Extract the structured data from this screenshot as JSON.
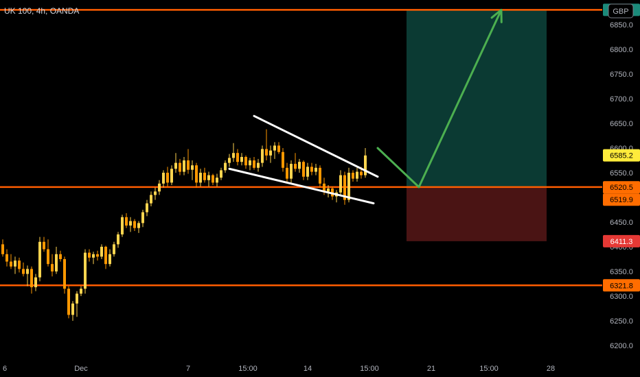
{
  "header": {
    "title": "UK 100, 4h, OANDA",
    "currency": "GBP"
  },
  "colors": {
    "background": "#000000",
    "candle_up": "#ffd54f",
    "candle_down": "#ff9800",
    "level_line": "#ff5d00",
    "target_zone": "#0b3a33",
    "stop_zone": "#4a1414",
    "arrow": "#4caf50",
    "trendline": "#ffffff",
    "price_tag_yellow": "#ffeb3b",
    "price_tag_orange": "#ff6d00",
    "price_tag_green": "#1b8a7a",
    "price_tag_red": "#e53935"
  },
  "chart_data": {
    "type": "candlestick",
    "symbol": "UK 100",
    "timeframe": "4h",
    "source": "OANDA",
    "ylim": [
      6175,
      6900
    ],
    "xlim": [
      0,
      120
    ],
    "y_ticks": [
      6200,
      6250,
      6300,
      6350,
      6400,
      6450,
      6500,
      6550,
      6600,
      6650,
      6700,
      6750,
      6800,
      6850
    ],
    "y_tick_labels": [
      "6200.0",
      "6250.0",
      "6300.0",
      "6350.0",
      "6400.0",
      "6450.0",
      "6500.0",
      "6550.0",
      "6600.0",
      "6650.0",
      "6700.0",
      "6750.0",
      "6800.0",
      "6850.0"
    ],
    "x_ticks": [
      {
        "x": 0,
        "label": "6"
      },
      {
        "x": 19,
        "label": "Dec"
      },
      {
        "x": 45,
        "label": "7"
      },
      {
        "x": 59.5,
        "label": "15:00"
      },
      {
        "x": 74,
        "label": "14"
      },
      {
        "x": 89,
        "label": "15:00"
      },
      {
        "x": 104,
        "label": "21"
      },
      {
        "x": 118,
        "label": "15:00"
      },
      {
        "x": 133,
        "label": "28"
      }
    ],
    "horizontal_levels": [
      6880.0,
      6521.0,
      6321.8
    ],
    "price_tags": [
      {
        "value": 6880.0,
        "label": "6880.0",
        "color": "green"
      },
      {
        "value": 6585.2,
        "label": "6585.2",
        "color": "yellow"
      },
      {
        "value": 6520.5,
        "label": "6520.5",
        "color": "orange"
      },
      {
        "value": 6519.9,
        "label": "6519.9",
        "color": "orange"
      },
      {
        "value": 6411.3,
        "label": "6411.3",
        "color": "red"
      },
      {
        "value": 6321.8,
        "label": "6321.8",
        "color": "orange"
      }
    ],
    "target_zone": {
      "x_start": 98,
      "x_end": 132,
      "y_low": 6521,
      "y_high": 6880
    },
    "stop_zone": {
      "x_start": 98,
      "x_end": 132,
      "y_low": 6411.3,
      "y_high": 6521
    },
    "trendlines": [
      {
        "x1": 61,
        "y1": 6665,
        "x2": 91,
        "y2": 6542
      },
      {
        "x1": 55,
        "y1": 6558,
        "x2": 90,
        "y2": 6488
      }
    ],
    "arrow_path": [
      [
        91,
        6600
      ],
      [
        101,
        6521
      ],
      [
        121,
        6880
      ]
    ],
    "candles": [
      {
        "o": 6405,
        "h": 6415,
        "l": 6380,
        "c": 6385
      },
      {
        "o": 6385,
        "h": 6395,
        "l": 6360,
        "c": 6370
      },
      {
        "o": 6370,
        "h": 6385,
        "l": 6355,
        "c": 6360
      },
      {
        "o": 6360,
        "h": 6380,
        "l": 6345,
        "c": 6372
      },
      {
        "o": 6372,
        "h": 6378,
        "l": 6348,
        "c": 6355
      },
      {
        "o": 6355,
        "h": 6368,
        "l": 6340,
        "c": 6345
      },
      {
        "o": 6345,
        "h": 6362,
        "l": 6320,
        "c": 6355
      },
      {
        "o": 6355,
        "h": 6360,
        "l": 6305,
        "c": 6318
      },
      {
        "o": 6318,
        "h": 6345,
        "l": 6310,
        "c": 6338
      },
      {
        "o": 6338,
        "h": 6420,
        "l": 6330,
        "c": 6410
      },
      {
        "o": 6410,
        "h": 6420,
        "l": 6390,
        "c": 6395
      },
      {
        "o": 6395,
        "h": 6415,
        "l": 6360,
        "c": 6365
      },
      {
        "o": 6365,
        "h": 6385,
        "l": 6340,
        "c": 6350
      },
      {
        "o": 6350,
        "h": 6400,
        "l": 6345,
        "c": 6385
      },
      {
        "o": 6385,
        "h": 6392,
        "l": 6370,
        "c": 6375
      },
      {
        "o": 6375,
        "h": 6380,
        "l": 6305,
        "c": 6315
      },
      {
        "o": 6315,
        "h": 6320,
        "l": 6255,
        "c": 6262
      },
      {
        "o": 6262,
        "h": 6290,
        "l": 6250,
        "c": 6285
      },
      {
        "o": 6285,
        "h": 6310,
        "l": 6258,
        "c": 6305
      },
      {
        "o": 6305,
        "h": 6320,
        "l": 6300,
        "c": 6315
      },
      {
        "o": 6315,
        "h": 6395,
        "l": 6305,
        "c": 6388
      },
      {
        "o": 6388,
        "h": 6395,
        "l": 6370,
        "c": 6378
      },
      {
        "o": 6378,
        "h": 6390,
        "l": 6365,
        "c": 6385
      },
      {
        "o": 6385,
        "h": 6392,
        "l": 6372,
        "c": 6380
      },
      {
        "o": 6380,
        "h": 6405,
        "l": 6375,
        "c": 6400
      },
      {
        "o": 6400,
        "h": 6402,
        "l": 6355,
        "c": 6365
      },
      {
        "o": 6365,
        "h": 6395,
        "l": 6360,
        "c": 6385
      },
      {
        "o": 6385,
        "h": 6410,
        "l": 6380,
        "c": 6405
      },
      {
        "o": 6405,
        "h": 6430,
        "l": 6398,
        "c": 6425
      },
      {
        "o": 6425,
        "h": 6465,
        "l": 6420,
        "c": 6460
      },
      {
        "o": 6460,
        "h": 6468,
        "l": 6438,
        "c": 6443
      },
      {
        "o": 6443,
        "h": 6460,
        "l": 6430,
        "c": 6452
      },
      {
        "o": 6452,
        "h": 6456,
        "l": 6432,
        "c": 6438
      },
      {
        "o": 6438,
        "h": 6452,
        "l": 6428,
        "c": 6448
      },
      {
        "o": 6448,
        "h": 6475,
        "l": 6440,
        "c": 6470
      },
      {
        "o": 6470,
        "h": 6495,
        "l": 6462,
        "c": 6488
      },
      {
        "o": 6488,
        "h": 6512,
        "l": 6482,
        "c": 6505
      },
      {
        "o": 6505,
        "h": 6520,
        "l": 6495,
        "c": 6512
      },
      {
        "o": 6512,
        "h": 6535,
        "l": 6505,
        "c": 6528
      },
      {
        "o": 6528,
        "h": 6555,
        "l": 6520,
        "c": 6550
      },
      {
        "o": 6550,
        "h": 6562,
        "l": 6522,
        "c": 6530
      },
      {
        "o": 6530,
        "h": 6565,
        "l": 6525,
        "c": 6558
      },
      {
        "o": 6558,
        "h": 6590,
        "l": 6550,
        "c": 6570
      },
      {
        "o": 6570,
        "h": 6578,
        "l": 6545,
        "c": 6552
      },
      {
        "o": 6552,
        "h": 6582,
        "l": 6545,
        "c": 6575
      },
      {
        "o": 6575,
        "h": 6598,
        "l": 6548,
        "c": 6556
      },
      {
        "o": 6556,
        "h": 6575,
        "l": 6535,
        "c": 6565
      },
      {
        "o": 6565,
        "h": 6570,
        "l": 6520,
        "c": 6530
      },
      {
        "o": 6530,
        "h": 6558,
        "l": 6522,
        "c": 6550
      },
      {
        "o": 6550,
        "h": 6560,
        "l": 6530,
        "c": 6535
      },
      {
        "o": 6535,
        "h": 6552,
        "l": 6522,
        "c": 6545
      },
      {
        "o": 6545,
        "h": 6548,
        "l": 6525,
        "c": 6530
      },
      {
        "o": 6530,
        "h": 6548,
        "l": 6522,
        "c": 6540
      },
      {
        "o": 6540,
        "h": 6560,
        "l": 6535,
        "c": 6555
      },
      {
        "o": 6555,
        "h": 6575,
        "l": 6550,
        "c": 6570
      },
      {
        "o": 6570,
        "h": 6588,
        "l": 6562,
        "c": 6580
      },
      {
        "o": 6580,
        "h": 6610,
        "l": 6572,
        "c": 6590
      },
      {
        "o": 6590,
        "h": 6598,
        "l": 6565,
        "c": 6572
      },
      {
        "o": 6572,
        "h": 6590,
        "l": 6565,
        "c": 6582
      },
      {
        "o": 6582,
        "h": 6585,
        "l": 6558,
        "c": 6565
      },
      {
        "o": 6565,
        "h": 6580,
        "l": 6555,
        "c": 6575
      },
      {
        "o": 6575,
        "h": 6582,
        "l": 6556,
        "c": 6560
      },
      {
        "o": 6560,
        "h": 6578,
        "l": 6552,
        "c": 6570
      },
      {
        "o": 6570,
        "h": 6605,
        "l": 6562,
        "c": 6598
      },
      {
        "o": 6598,
        "h": 6638,
        "l": 6575,
        "c": 6585
      },
      {
        "o": 6585,
        "h": 6605,
        "l": 6570,
        "c": 6595
      },
      {
        "o": 6595,
        "h": 6612,
        "l": 6578,
        "c": 6605
      },
      {
        "o": 6605,
        "h": 6612,
        "l": 6588,
        "c": 6592
      },
      {
        "o": 6592,
        "h": 6600,
        "l": 6552,
        "c": 6560
      },
      {
        "o": 6560,
        "h": 6570,
        "l": 6530,
        "c": 6538
      },
      {
        "o": 6538,
        "h": 6575,
        "l": 6530,
        "c": 6568
      },
      {
        "o": 6568,
        "h": 6590,
        "l": 6552,
        "c": 6558
      },
      {
        "o": 6558,
        "h": 6578,
        "l": 6550,
        "c": 6572
      },
      {
        "o": 6572,
        "h": 6575,
        "l": 6535,
        "c": 6542
      },
      {
        "o": 6542,
        "h": 6570,
        "l": 6535,
        "c": 6562
      },
      {
        "o": 6562,
        "h": 6570,
        "l": 6545,
        "c": 6552
      },
      {
        "o": 6552,
        "h": 6568,
        "l": 6545,
        "c": 6560
      },
      {
        "o": 6560,
        "h": 6565,
        "l": 6520,
        "c": 6528
      },
      {
        "o": 6528,
        "h": 6540,
        "l": 6505,
        "c": 6512
      },
      {
        "o": 6512,
        "h": 6525,
        "l": 6500,
        "c": 6518
      },
      {
        "o": 6518,
        "h": 6522,
        "l": 6495,
        "c": 6502
      },
      {
        "o": 6502,
        "h": 6515,
        "l": 6490,
        "c": 6510
      },
      {
        "o": 6510,
        "h": 6555,
        "l": 6505,
        "c": 6545
      },
      {
        "o": 6545,
        "h": 6552,
        "l": 6485,
        "c": 6495
      },
      {
        "o": 6495,
        "h": 6560,
        "l": 6490,
        "c": 6550
      },
      {
        "o": 6550,
        "h": 6555,
        "l": 6532,
        "c": 6538
      },
      {
        "o": 6538,
        "h": 6560,
        "l": 6532,
        "c": 6552
      },
      {
        "o": 6552,
        "h": 6562,
        "l": 6538,
        "c": 6545
      },
      {
        "o": 6545,
        "h": 6600,
        "l": 6540,
        "c": 6585
      }
    ]
  }
}
